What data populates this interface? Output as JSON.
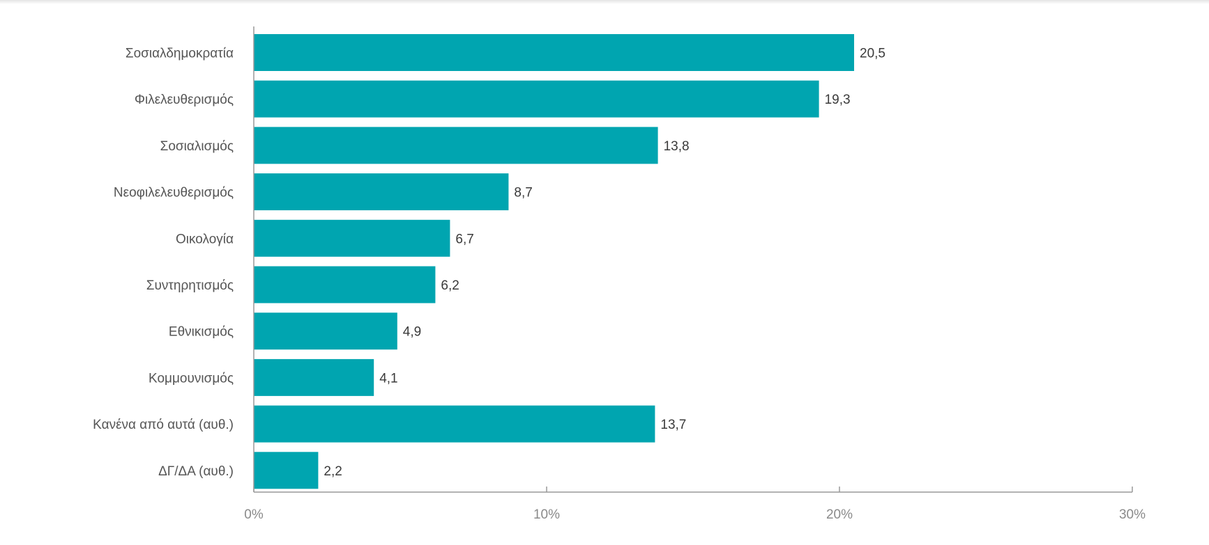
{
  "chart_data": {
    "type": "bar",
    "orientation": "horizontal",
    "categories": [
      "Σοσιαλδημοκρατία",
      "Φιλελευθερισμός",
      "Σοσιαλισμός",
      "Νεοφιλελευθερισμός",
      "Οικολογία",
      "Συντηρητισμός",
      "Εθνικισμός",
      "Κομμουνισμός",
      "Κανένα από αυτά (αυθ.)",
      "ΔΓ/ΔΑ (αυθ.)"
    ],
    "values": [
      20.5,
      19.3,
      13.8,
      8.7,
      6.7,
      6.2,
      4.9,
      4.1,
      13.7,
      2.2
    ],
    "value_labels": [
      "20,5",
      "19,3",
      "13,8",
      "8,7",
      "6,7",
      "6,2",
      "4,9",
      "4,1",
      "13,7",
      "2,2"
    ],
    "xlim": [
      0,
      30
    ],
    "xticks": [
      0,
      10,
      20,
      30
    ],
    "xtick_labels": [
      "0%",
      "10%",
      "20%",
      "30%"
    ],
    "title": "",
    "xlabel": "",
    "ylabel": "",
    "grid": false,
    "legend": "none",
    "colors": {
      "bar": "#00a5b0",
      "axis": "#999999"
    }
  }
}
